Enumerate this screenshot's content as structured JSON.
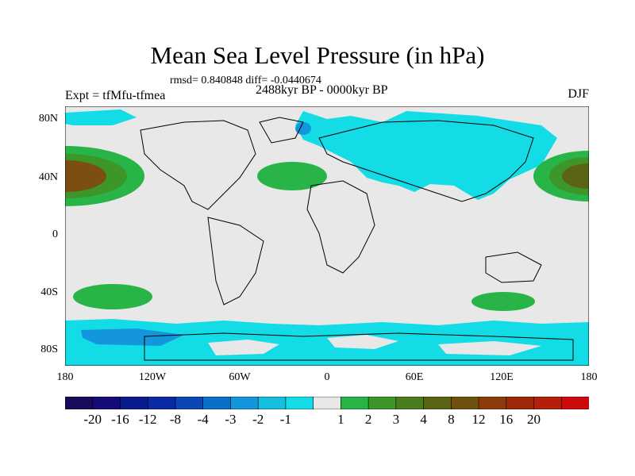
{
  "title": "Mean Sea Level Pressure (in hPa)",
  "stats": "rmsd= 0.840848 diff= -0.0440674",
  "experiment": "Expt = tfMfu-tfmea",
  "period": "2488kyr BP - 0000kyr BP",
  "season": "DJF",
  "lat_labels": [
    "80N",
    "40N",
    "0",
    "40S",
    "80S"
  ],
  "lon_labels": [
    "180",
    "120W",
    "60W",
    "0",
    "60E",
    "120E",
    "180"
  ],
  "colorbar": {
    "colors": [
      "#1a0a5a",
      "#140a78",
      "#0a1a8c",
      "#0a2aa5",
      "#0a46b4",
      "#0a6ec8",
      "#1496dc",
      "#14bedc",
      "#14dce6",
      "#e8e8e8",
      "#28b446",
      "#3c9628",
      "#4b7d1e",
      "#5a6414",
      "#6e500f",
      "#8c3c0a",
      "#a0280a",
      "#b41e0a",
      "#cd0a0a"
    ],
    "labels": [
      "-20",
      "-16",
      "-12",
      "-8",
      "-4",
      "-3",
      "-2",
      "-1",
      "1",
      "2",
      "3",
      "4",
      "8",
      "12",
      "16",
      "20"
    ]
  }
}
